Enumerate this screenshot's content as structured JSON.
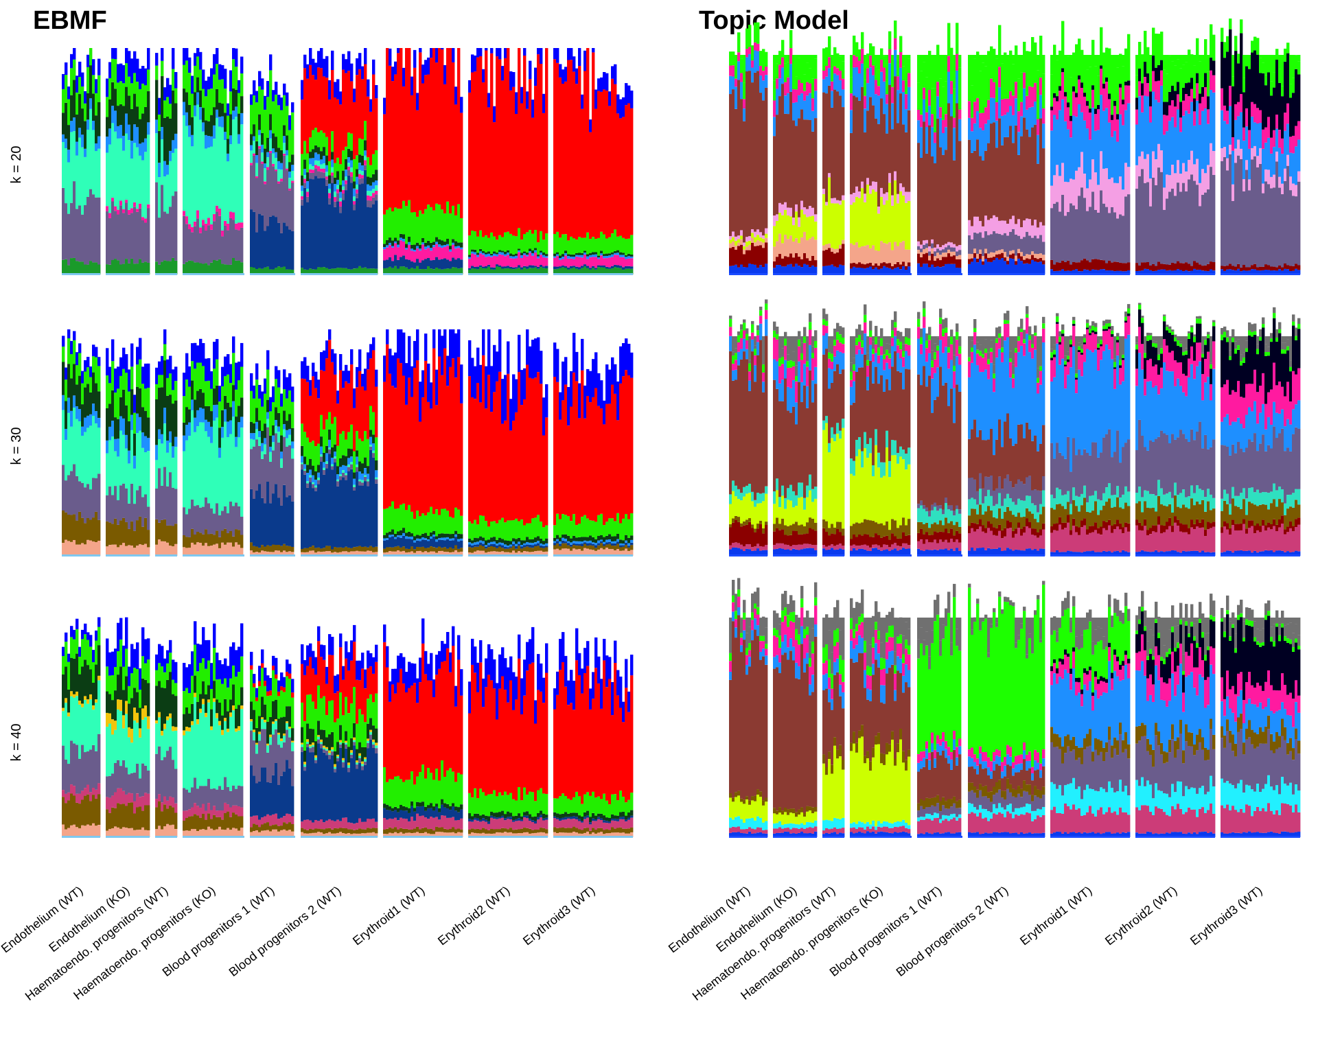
{
  "figure": {
    "panels": [
      {
        "title": "EBMF"
      },
      {
        "title": "Topic Model"
      }
    ],
    "row_labels": [
      "k = 20",
      "k = 30",
      "k = 40"
    ]
  },
  "colors": {
    "blue": "#0000ff",
    "red": "#ff0000",
    "green": "#22ee00",
    "lime": "#1dff00",
    "dark_green": "#0b3d14",
    "aquamarine": "#2fffb8",
    "slate": "#6a5c8c",
    "navy": "#0a3a8c",
    "brown": "#8b3a32",
    "sky_blue": "#1e8fff",
    "pink": "#ff1aa0",
    "light_pink": "#f49fe4",
    "yellow_green": "#ccff00",
    "olive": "#7a5a00",
    "salmon": "#f4a58a",
    "dark_red": "#8b0000",
    "deep_pink": "#cc3c78",
    "cyan": "#22f0ff",
    "gold": "#f2c40c",
    "black": "#000022",
    "grey": "#707070"
  },
  "chart_data": [
    {
      "type": "stacked_bar_structure_plot",
      "title": "EBMF",
      "row_label": "k = 20",
      "categories": [
        "Endothelium (WT)",
        "Endothelium (KO)",
        "Haematoendo. progenitors (WT)",
        "Haematoendo. progenitors (KO)",
        "Blood progenitors 1 (WT)",
        "Blood progenitors 2 (WT)",
        "Erythroid1 (WT)",
        "Erythroid2 (WT)",
        "Erythroid3 (WT)"
      ],
      "series": [
        {
          "color": "#1a9a2a",
          "values": [
            0.06,
            0.06,
            0.06,
            0.06,
            0.03,
            0.03,
            0.03,
            0.03,
            0.03
          ]
        },
        {
          "color": "#0a3a8c",
          "values": [
            0.0,
            0.0,
            0.0,
            0.0,
            0.22,
            0.35,
            0.04,
            0.01,
            0.01
          ]
        },
        {
          "color": "#6a5c8c",
          "values": [
            0.28,
            0.22,
            0.3,
            0.18,
            0.25,
            0.03,
            0.0,
            0.0,
            0.0
          ]
        },
        {
          "color": "#ff1aa0",
          "values": [
            0.0,
            0.02,
            0.0,
            0.03,
            0.01,
            0.02,
            0.06,
            0.05,
            0.04
          ]
        },
        {
          "color": "#2fffb8",
          "values": [
            0.3,
            0.28,
            0.22,
            0.4,
            0.05,
            0.02,
            0.0,
            0.0,
            0.0
          ]
        },
        {
          "color": "#1e8fff",
          "values": [
            0.05,
            0.08,
            0.06,
            0.05,
            0.03,
            0.03,
            0.01,
            0.01,
            0.01
          ]
        },
        {
          "color": "#0b3d14",
          "values": [
            0.14,
            0.12,
            0.2,
            0.08,
            0.06,
            0.04,
            0.02,
            0.01,
            0.01
          ]
        },
        {
          "color": "#22ee00",
          "values": [
            0.1,
            0.12,
            0.08,
            0.12,
            0.16,
            0.08,
            0.14,
            0.08,
            0.08
          ]
        },
        {
          "color": "#ff0000",
          "values": [
            0.0,
            0.0,
            0.0,
            0.0,
            0.0,
            0.3,
            0.66,
            0.72,
            0.7
          ]
        },
        {
          "color": "#0000ff",
          "values": [
            0.07,
            0.1,
            0.08,
            0.08,
            0.06,
            0.08,
            0.07,
            0.08,
            0.08
          ]
        }
      ]
    },
    {
      "type": "stacked_bar_structure_plot",
      "title": "EBMF",
      "row_label": "k = 30",
      "categories": [
        "Endothelium (WT)",
        "Endothelium (KO)",
        "Haematoendo. progenitors (WT)",
        "Haematoendo. progenitors (KO)",
        "Blood progenitors 1 (WT)",
        "Blood progenitors 2 (WT)",
        "Erythroid1 (WT)",
        "Erythroid2 (WT)",
        "Erythroid3 (WT)"
      ],
      "series": [
        {
          "color": "#f4a58a",
          "values": [
            0.06,
            0.05,
            0.06,
            0.05,
            0.02,
            0.02,
            0.02,
            0.02,
            0.03
          ]
        },
        {
          "color": "#7a5a00",
          "values": [
            0.12,
            0.1,
            0.1,
            0.06,
            0.03,
            0.02,
            0.02,
            0.02,
            0.02
          ]
        },
        {
          "color": "#0a3a8c",
          "values": [
            0.0,
            0.0,
            0.0,
            0.0,
            0.24,
            0.35,
            0.04,
            0.01,
            0.01
          ]
        },
        {
          "color": "#6a5c8c",
          "values": [
            0.18,
            0.14,
            0.2,
            0.12,
            0.2,
            0.02,
            0.0,
            0.0,
            0.0
          ]
        },
        {
          "color": "#2fffb8",
          "values": [
            0.24,
            0.22,
            0.16,
            0.34,
            0.04,
            0.01,
            0.0,
            0.0,
            0.0
          ]
        },
        {
          "color": "#1e8fff",
          "values": [
            0.06,
            0.08,
            0.06,
            0.06,
            0.03,
            0.03,
            0.01,
            0.01,
            0.01
          ]
        },
        {
          "color": "#0b3d14",
          "values": [
            0.14,
            0.12,
            0.18,
            0.08,
            0.06,
            0.04,
            0.02,
            0.02,
            0.02
          ]
        },
        {
          "color": "#22ee00",
          "values": [
            0.1,
            0.12,
            0.08,
            0.12,
            0.12,
            0.1,
            0.1,
            0.08,
            0.08
          ]
        },
        {
          "color": "#ff0000",
          "values": [
            0.0,
            0.0,
            0.0,
            0.0,
            0.0,
            0.26,
            0.6,
            0.58,
            0.58
          ]
        },
        {
          "color": "#0000ff",
          "values": [
            0.05,
            0.1,
            0.08,
            0.1,
            0.08,
            0.08,
            0.16,
            0.18,
            0.15
          ]
        }
      ]
    },
    {
      "type": "stacked_bar_structure_plot",
      "title": "EBMF",
      "row_label": "k = 40",
      "categories": [
        "Endothelium (WT)",
        "Endothelium (KO)",
        "Haematoendo. progenitors (WT)",
        "Haematoendo. progenitors (KO)",
        "Blood progenitors 1 (WT)",
        "Blood progenitors 2 (WT)",
        "Erythroid1 (WT)",
        "Erythroid2 (WT)",
        "Erythroid3 (WT)"
      ],
      "series": [
        {
          "color": "#f4a58a",
          "values": [
            0.05,
            0.04,
            0.05,
            0.04,
            0.03,
            0.02,
            0.02,
            0.02,
            0.02
          ]
        },
        {
          "color": "#7a5a00",
          "values": [
            0.12,
            0.1,
            0.1,
            0.06,
            0.03,
            0.02,
            0.02,
            0.02,
            0.02
          ]
        },
        {
          "color": "#cc3c78",
          "values": [
            0.04,
            0.06,
            0.04,
            0.04,
            0.04,
            0.04,
            0.05,
            0.04,
            0.04
          ]
        },
        {
          "color": "#0a3a8c",
          "values": [
            0.0,
            0.0,
            0.0,
            0.0,
            0.2,
            0.3,
            0.04,
            0.01,
            0.01
          ]
        },
        {
          "color": "#6a5c8c",
          "values": [
            0.18,
            0.12,
            0.2,
            0.1,
            0.16,
            0.02,
            0.0,
            0.0,
            0.0
          ]
        },
        {
          "color": "#2fffb8",
          "values": [
            0.22,
            0.2,
            0.14,
            0.32,
            0.04,
            0.01,
            0.0,
            0.0,
            0.0
          ]
        },
        {
          "color": "#f2c40c",
          "values": [
            0.02,
            0.06,
            0.02,
            0.02,
            0.01,
            0.01,
            0.0,
            0.0,
            0.0
          ]
        },
        {
          "color": "#0b3d14",
          "values": [
            0.14,
            0.12,
            0.18,
            0.08,
            0.08,
            0.06,
            0.02,
            0.02,
            0.02
          ]
        },
        {
          "color": "#22ee00",
          "values": [
            0.1,
            0.1,
            0.08,
            0.12,
            0.12,
            0.14,
            0.14,
            0.1,
            0.08
          ]
        },
        {
          "color": "#ff0000",
          "values": [
            0.0,
            0.0,
            0.0,
            0.0,
            0.02,
            0.18,
            0.48,
            0.48,
            0.5
          ]
        },
        {
          "color": "#0000ff",
          "values": [
            0.05,
            0.12,
            0.08,
            0.12,
            0.06,
            0.08,
            0.1,
            0.14,
            0.12
          ]
        }
      ]
    },
    {
      "type": "stacked_bar_structure_plot",
      "title": "Topic Model",
      "row_label": "k = 20",
      "categories": [
        "Endothelium (WT)",
        "Endothelium (KO)",
        "Haematoendo. progenitors (WT)",
        "Haematoendo. progenitors (KO)",
        "Blood progenitors 1 (WT)",
        "Blood progenitors 2 (WT)",
        "Erythroid1 (WT)",
        "Erythroid2 (WT)",
        "Erythroid3 (WT)"
      ],
      "series": [
        {
          "color": "#0a3aee",
          "values": [
            0.04,
            0.04,
            0.04,
            0.03,
            0.04,
            0.06,
            0.02,
            0.02,
            0.02
          ]
        },
        {
          "color": "#8b0000",
          "values": [
            0.08,
            0.04,
            0.08,
            0.02,
            0.04,
            0.02,
            0.04,
            0.03,
            0.02
          ]
        },
        {
          "color": "#f4a58a",
          "values": [
            0.02,
            0.08,
            0.02,
            0.08,
            0.02,
            0.02,
            0.0,
            0.0,
            0.0
          ]
        },
        {
          "color": "#ccff00",
          "values": [
            0.02,
            0.1,
            0.24,
            0.22,
            0.0,
            0.0,
            0.0,
            0.0,
            0.0
          ]
        },
        {
          "color": "#6a5c8c",
          "values": [
            0.0,
            0.0,
            0.0,
            0.0,
            0.02,
            0.08,
            0.26,
            0.34,
            0.4
          ]
        },
        {
          "color": "#f49fe4",
          "values": [
            0.02,
            0.04,
            0.02,
            0.04,
            0.02,
            0.06,
            0.14,
            0.1,
            0.06
          ]
        },
        {
          "color": "#8b3a32",
          "values": [
            0.62,
            0.46,
            0.4,
            0.36,
            0.52,
            0.38,
            0.0,
            0.0,
            0.0
          ]
        },
        {
          "color": "#1e8fff",
          "values": [
            0.08,
            0.1,
            0.08,
            0.12,
            0.12,
            0.12,
            0.24,
            0.24,
            0.14
          ]
        },
        {
          "color": "#ff1aa0",
          "values": [
            0.04,
            0.06,
            0.04,
            0.06,
            0.06,
            0.08,
            0.1,
            0.08,
            0.08
          ]
        },
        {
          "color": "#000022",
          "values": [
            0.0,
            0.0,
            0.0,
            0.0,
            0.0,
            0.0,
            0.02,
            0.06,
            0.22
          ]
        },
        {
          "color": "#1dff00",
          "values": [
            0.08,
            0.08,
            0.08,
            0.07,
            0.16,
            0.18,
            0.18,
            0.13,
            0.06
          ]
        }
      ]
    },
    {
      "type": "stacked_bar_structure_plot",
      "title": "Topic Model",
      "row_label": "k = 30",
      "categories": [
        "Endothelium (WT)",
        "Endothelium (KO)",
        "Haematoendo. progenitors (WT)",
        "Haematoendo. progenitors (KO)",
        "Blood progenitors 1 (WT)",
        "Blood progenitors 2 (WT)",
        "Erythroid1 (WT)",
        "Erythroid2 (WT)",
        "Erythroid3 (WT)"
      ],
      "series": [
        {
          "color": "#0a3aee",
          "values": [
            0.03,
            0.03,
            0.03,
            0.03,
            0.03,
            0.03,
            0.02,
            0.02,
            0.02
          ]
        },
        {
          "color": "#cc3c78",
          "values": [
            0.02,
            0.02,
            0.02,
            0.02,
            0.04,
            0.08,
            0.1,
            0.1,
            0.1
          ]
        },
        {
          "color": "#8b0000",
          "values": [
            0.08,
            0.06,
            0.06,
            0.04,
            0.04,
            0.03,
            0.03,
            0.03,
            0.03
          ]
        },
        {
          "color": "#7a5a00",
          "values": [
            0.02,
            0.04,
            0.04,
            0.06,
            0.04,
            0.06,
            0.08,
            0.08,
            0.08
          ]
        },
        {
          "color": "#ccff00",
          "values": [
            0.1,
            0.1,
            0.36,
            0.28,
            0.0,
            0.0,
            0.0,
            0.0,
            0.0
          ]
        },
        {
          "color": "#2fe0c0",
          "values": [
            0.04,
            0.06,
            0.04,
            0.06,
            0.06,
            0.06,
            0.06,
            0.06,
            0.06
          ]
        },
        {
          "color": "#6a5c8c",
          "values": [
            0.0,
            0.0,
            0.0,
            0.0,
            0.02,
            0.08,
            0.2,
            0.24,
            0.22
          ]
        },
        {
          "color": "#8b3a32",
          "values": [
            0.56,
            0.44,
            0.26,
            0.32,
            0.5,
            0.22,
            0.0,
            0.0,
            0.0
          ]
        },
        {
          "color": "#1e8fff",
          "values": [
            0.06,
            0.1,
            0.08,
            0.08,
            0.14,
            0.32,
            0.38,
            0.26,
            0.12
          ]
        },
        {
          "color": "#ff1aa0",
          "values": [
            0.04,
            0.08,
            0.04,
            0.04,
            0.06,
            0.06,
            0.08,
            0.1,
            0.14
          ]
        },
        {
          "color": "#000022",
          "values": [
            0.0,
            0.0,
            0.0,
            0.0,
            0.0,
            0.0,
            0.01,
            0.08,
            0.18
          ]
        },
        {
          "color": "#1dff00",
          "values": [
            0.03,
            0.03,
            0.03,
            0.03,
            0.03,
            0.02,
            0.02,
            0.02,
            0.02
          ]
        },
        {
          "color": "#707070",
          "values": [
            0.02,
            0.04,
            0.04,
            0.04,
            0.04,
            0.04,
            0.02,
            0.01,
            0.03
          ]
        }
      ]
    },
    {
      "type": "stacked_bar_structure_plot",
      "title": "Topic Model",
      "row_label": "k = 40",
      "categories": [
        "Endothelium (WT)",
        "Endothelium (KO)",
        "Haematoendo. progenitors (WT)",
        "Haematoendo. progenitors (KO)",
        "Blood progenitors 1 (WT)",
        "Blood progenitors 2 (WT)",
        "Erythroid1 (WT)",
        "Erythroid2 (WT)",
        "Erythroid3 (WT)"
      ],
      "series": [
        {
          "color": "#0a3aee",
          "values": [
            0.02,
            0.02,
            0.02,
            0.02,
            0.02,
            0.02,
            0.02,
            0.02,
            0.02
          ]
        },
        {
          "color": "#cc3c78",
          "values": [
            0.02,
            0.02,
            0.02,
            0.02,
            0.06,
            0.08,
            0.1,
            0.1,
            0.1
          ]
        },
        {
          "color": "#22f0ff",
          "values": [
            0.04,
            0.02,
            0.04,
            0.02,
            0.02,
            0.04,
            0.1,
            0.1,
            0.1
          ]
        },
        {
          "color": "#ccff00",
          "values": [
            0.08,
            0.04,
            0.26,
            0.3,
            0.0,
            0.0,
            0.0,
            0.0,
            0.0
          ]
        },
        {
          "color": "#6a5c8c",
          "values": [
            0.0,
            0.0,
            0.0,
            0.0,
            0.04,
            0.06,
            0.16,
            0.18,
            0.18
          ]
        },
        {
          "color": "#7a5a00",
          "values": [
            0.02,
            0.02,
            0.04,
            0.04,
            0.04,
            0.04,
            0.06,
            0.06,
            0.06
          ]
        },
        {
          "color": "#8b3a32",
          "values": [
            0.64,
            0.56,
            0.3,
            0.28,
            0.18,
            0.08,
            0.0,
            0.0,
            0.0
          ]
        },
        {
          "color": "#1e8fff",
          "values": [
            0.04,
            0.06,
            0.06,
            0.06,
            0.04,
            0.04,
            0.24,
            0.22,
            0.1
          ]
        },
        {
          "color": "#ff1aa0",
          "values": [
            0.04,
            0.08,
            0.06,
            0.06,
            0.04,
            0.04,
            0.06,
            0.1,
            0.1
          ]
        },
        {
          "color": "#000022",
          "values": [
            0.0,
            0.0,
            0.0,
            0.0,
            0.0,
            0.0,
            0.02,
            0.1,
            0.22
          ]
        },
        {
          "color": "#1dff00",
          "values": [
            0.03,
            0.04,
            0.08,
            0.04,
            0.52,
            0.62,
            0.16,
            0.02,
            0.02
          ]
        },
        {
          "color": "#707070",
          "values": [
            0.07,
            0.06,
            0.12,
            0.08,
            0.08,
            0.02,
            0.06,
            0.08,
            0.06
          ]
        }
      ]
    }
  ]
}
